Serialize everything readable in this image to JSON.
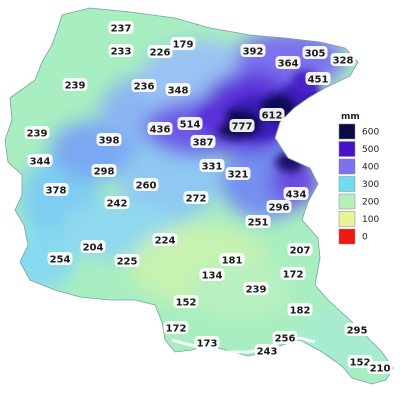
{
  "legend": {
    "unit": "mm",
    "classes": [
      {
        "value": "600",
        "color": "#0b0b47"
      },
      {
        "value": "500",
        "color": "#4a12c8"
      },
      {
        "value": "400",
        "color": "#7a72ee"
      },
      {
        "value": "300",
        "color": "#72dcee"
      },
      {
        "value": "200",
        "color": "#b4f0b8"
      },
      {
        "value": "100",
        "color": "#e6f598"
      },
      {
        "value": "0",
        "color": "#ee1a12"
      }
    ]
  },
  "stations": [
    {
      "value": "237"
    },
    {
      "value": "233"
    },
    {
      "value": "226"
    },
    {
      "value": "179"
    },
    {
      "value": "392"
    },
    {
      "value": "305"
    },
    {
      "value": "328"
    },
    {
      "value": "364"
    },
    {
      "value": "451"
    },
    {
      "value": "239"
    },
    {
      "value": "236"
    },
    {
      "value": "348"
    },
    {
      "value": "612"
    },
    {
      "value": "777"
    },
    {
      "value": "514"
    },
    {
      "value": "436"
    },
    {
      "value": "387"
    },
    {
      "value": "239"
    },
    {
      "value": "398"
    },
    {
      "value": "344"
    },
    {
      "value": "298"
    },
    {
      "value": "331"
    },
    {
      "value": "321"
    },
    {
      "value": "378"
    },
    {
      "value": "260"
    },
    {
      "value": "434"
    },
    {
      "value": "242"
    },
    {
      "value": "272"
    },
    {
      "value": "296"
    },
    {
      "value": "251"
    },
    {
      "value": "204"
    },
    {
      "value": "224"
    },
    {
      "value": "207"
    },
    {
      "value": "254"
    },
    {
      "value": "225"
    },
    {
      "value": "181"
    },
    {
      "value": "134"
    },
    {
      "value": "172"
    },
    {
      "value": "239"
    },
    {
      "value": "152"
    },
    {
      "value": "182"
    },
    {
      "value": "172"
    },
    {
      "value": "295"
    },
    {
      "value": "173"
    },
    {
      "value": "256"
    },
    {
      "value": "243"
    },
    {
      "value": "152"
    },
    {
      "value": "210"
    }
  ]
}
